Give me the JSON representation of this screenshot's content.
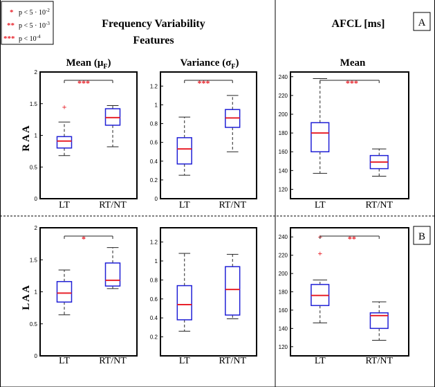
{
  "legend": [
    {
      "stars": "*",
      "text": "p < 5 · 10",
      "exp": "-2"
    },
    {
      "stars": "**",
      "text": "p < 5 · 10",
      "exp": "-3"
    },
    {
      "stars": "***",
      "text": "p < 10",
      "exp": "-4"
    }
  ],
  "headers": {
    "freq_line1": "Frequency Variability",
    "freq_line2": "Features",
    "afcl": "AFCL [ms]",
    "mean_main": "Mean (μ",
    "mean_sub": "F",
    "mean_close": ")",
    "var_main": "Variance (σ",
    "var_sub": "F",
    "var_close": ")",
    "afcl_mean": "Mean"
  },
  "row_labels": [
    "R A A",
    "L A A"
  ],
  "panel_labels": [
    "A",
    "B"
  ],
  "colors": {
    "box": "#1f1fd6",
    "median": "#e8212a",
    "star": "#e8212a",
    "whisker": "#222222",
    "frame": "#000000"
  },
  "chart_data": [
    {
      "type": "box",
      "id": "raa-mean",
      "categories": [
        "LT",
        "RT/NT"
      ],
      "ylim": [
        0,
        2
      ],
      "yticks": [
        "0",
        "0.5",
        "1",
        "1.5",
        "2"
      ],
      "boxes": [
        {
          "whislo": 0.68,
          "q1": 0.8,
          "med": 0.91,
          "q3": 0.98,
          "whishi": 1.21,
          "fliers": [
            1.45
          ]
        },
        {
          "whislo": 0.82,
          "q1": 1.16,
          "med": 1.28,
          "q3": 1.42,
          "whishi": 1.47,
          "fliers": []
        }
      ],
      "significance": "***"
    },
    {
      "type": "box",
      "id": "raa-var",
      "categories": [
        "LT",
        "RT/NT"
      ],
      "ylim": [
        0,
        1.35
      ],
      "yticks": [
        "0",
        "0.2",
        "0.4",
        "0.6",
        "0.8",
        "1",
        "1.2"
      ],
      "boxes": [
        {
          "whislo": 0.25,
          "q1": 0.37,
          "med": 0.53,
          "q3": 0.65,
          "whishi": 0.87,
          "fliers": []
        },
        {
          "whislo": 0.5,
          "q1": 0.76,
          "med": 0.86,
          "q3": 0.95,
          "whishi": 1.1,
          "fliers": []
        }
      ],
      "significance": "***"
    },
    {
      "type": "box",
      "id": "raa-afcl",
      "categories": [
        "LT",
        "RT/NT"
      ],
      "ylim": [
        110,
        245
      ],
      "yticks": [
        "120",
        "140",
        "160",
        "180",
        "200",
        "220",
        "240"
      ],
      "boxes": [
        {
          "whislo": 137,
          "q1": 160,
          "med": 180,
          "q3": 191,
          "whishi": 238,
          "fliers": []
        },
        {
          "whislo": 134,
          "q1": 142,
          "med": 149,
          "q3": 156,
          "whishi": 163,
          "fliers": []
        }
      ],
      "significance": "***"
    },
    {
      "type": "box",
      "id": "laa-mean",
      "categories": [
        "LT",
        "RT/NT"
      ],
      "ylim": [
        0,
        2
      ],
      "yticks": [
        "0",
        "0.5",
        "1",
        "1.5",
        "2"
      ],
      "boxes": [
        {
          "whislo": 0.64,
          "q1": 0.84,
          "med": 0.98,
          "q3": 1.16,
          "whishi": 1.34,
          "fliers": []
        },
        {
          "whislo": 1.05,
          "q1": 1.09,
          "med": 1.18,
          "q3": 1.45,
          "whishi": 1.69,
          "fliers": []
        }
      ],
      "significance": "*"
    },
    {
      "type": "box",
      "id": "laa-var",
      "categories": [
        "LT",
        "RT/NT"
      ],
      "ylim": [
        0,
        1.35
      ],
      "yticks": [
        "0.2",
        "0.4",
        "0.6",
        "0.8",
        "1",
        "1.2"
      ],
      "boxes": [
        {
          "whislo": 0.26,
          "q1": 0.38,
          "med": 0.54,
          "q3": 0.74,
          "whishi": 1.08,
          "fliers": []
        },
        {
          "whislo": 0.39,
          "q1": 0.43,
          "med": 0.7,
          "q3": 0.94,
          "whishi": 1.07,
          "fliers": []
        }
      ],
      "significance": ""
    },
    {
      "type": "box",
      "id": "laa-afcl",
      "categories": [
        "LT",
        "RT/NT"
      ],
      "ylim": [
        110,
        250
      ],
      "yticks": [
        "120",
        "140",
        "160",
        "180",
        "200",
        "220",
        "240"
      ],
      "boxes": [
        {
          "whislo": 146,
          "q1": 165,
          "med": 176,
          "q3": 188,
          "whishi": 193,
          "fliers": [
            222,
            240
          ]
        },
        {
          "whislo": 127,
          "q1": 140,
          "med": 154,
          "q3": 157,
          "whishi": 169,
          "fliers": []
        }
      ],
      "significance": "**"
    }
  ]
}
